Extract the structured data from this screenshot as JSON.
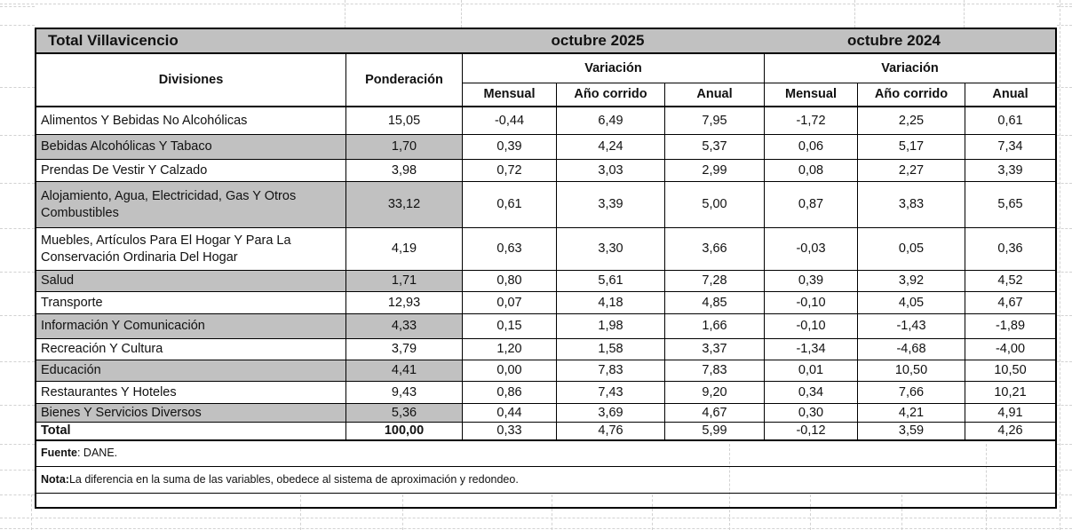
{
  "sheet": {
    "title": "Total Villavicencio",
    "groups": [
      {
        "label": "octubre 2025"
      },
      {
        "label": "octubre 2024"
      }
    ],
    "header": {
      "divisions": "Divisiones",
      "weight": "Ponderación",
      "variation": "Variación",
      "sub": [
        "Mensual",
        "Año corrido",
        "Anual"
      ]
    },
    "rows": [
      {
        "division": "Alimentos Y Bebidas No Alcohólicas",
        "weight": "15,05",
        "v2025": [
          "-0,44",
          "6,49",
          "7,95"
        ],
        "v2024": [
          "-1,72",
          "2,25",
          "0,61"
        ],
        "shaded": false,
        "bold": false
      },
      {
        "division": "Bebidas Alcohólicas Y Tabaco",
        "weight": "1,70",
        "v2025": [
          "0,39",
          "4,24",
          "5,37"
        ],
        "v2024": [
          "0,06",
          "5,17",
          "7,34"
        ],
        "shaded": true,
        "bold": false
      },
      {
        "division": "Prendas De Vestir Y Calzado",
        "weight": "3,98",
        "v2025": [
          "0,72",
          "3,03",
          "2,99"
        ],
        "v2024": [
          "0,08",
          "2,27",
          "3,39"
        ],
        "shaded": false,
        "bold": false
      },
      {
        "division": "Alojamiento, Agua, Electricidad, Gas Y Otros Combustibles",
        "weight": "33,12",
        "v2025": [
          "0,61",
          "3,39",
          "5,00"
        ],
        "v2024": [
          "0,87",
          "3,83",
          "5,65"
        ],
        "shaded": true,
        "bold": false
      },
      {
        "division": "Muebles, Artículos Para El Hogar Y Para La Conservación Ordinaria Del Hogar",
        "weight": "4,19",
        "v2025": [
          "0,63",
          "3,30",
          "3,66"
        ],
        "v2024": [
          "-0,03",
          "0,05",
          "0,36"
        ],
        "shaded": false,
        "bold": false
      },
      {
        "division": "Salud",
        "weight": "1,71",
        "v2025": [
          "0,80",
          "5,61",
          "7,28"
        ],
        "v2024": [
          "0,39",
          "3,92",
          "4,52"
        ],
        "shaded": true,
        "bold": false
      },
      {
        "division": "Transporte",
        "weight": "12,93",
        "v2025": [
          "0,07",
          "4,18",
          "4,85"
        ],
        "v2024": [
          "-0,10",
          "4,05",
          "4,67"
        ],
        "shaded": false,
        "bold": false
      },
      {
        "division": "Información Y Comunicación",
        "weight": "4,33",
        "v2025": [
          "0,15",
          "1,98",
          "1,66"
        ],
        "v2024": [
          "-0,10",
          "-1,43",
          "-1,89"
        ],
        "shaded": true,
        "bold": false
      },
      {
        "division": "Recreación Y Cultura",
        "weight": "3,79",
        "v2025": [
          "1,20",
          "1,58",
          "3,37"
        ],
        "v2024": [
          "-1,34",
          "-4,68",
          "-4,00"
        ],
        "shaded": false,
        "bold": false
      },
      {
        "division": "Educación",
        "weight": "4,41",
        "v2025": [
          "0,00",
          "7,83",
          "7,83"
        ],
        "v2024": [
          "0,01",
          "10,50",
          "10,50"
        ],
        "shaded": true,
        "bold": false
      },
      {
        "division": "Restaurantes Y Hoteles",
        "weight": "9,43",
        "v2025": [
          "0,86",
          "7,43",
          "9,20"
        ],
        "v2024": [
          "0,34",
          "7,66",
          "10,21"
        ],
        "shaded": false,
        "bold": false
      },
      {
        "division": "Bienes Y Servicios Diversos",
        "weight": "5,36",
        "v2025": [
          "0,44",
          "3,69",
          "4,67"
        ],
        "v2024": [
          "0,30",
          "4,21",
          "4,91"
        ],
        "shaded": true,
        "bold": false
      },
      {
        "division": "Total",
        "weight": "100,00",
        "v2025": [
          "0,33",
          "4,76",
          "5,99"
        ],
        "v2024": [
          "-0,12",
          "3,59",
          "4,26"
        ],
        "shaded": false,
        "bold": true
      }
    ],
    "footnotes": [
      {
        "label": "Fuente",
        "text": ": DANE."
      },
      {
        "label": "Nota:",
        "text": " La diferencia en la suma de las variables, obedece al sistema de aproximación y redondeo."
      }
    ],
    "colors": {
      "header_fill": "#c1c1c1",
      "stripe_fill": "#c1c1c1",
      "border": "#000000",
      "gridline": "#d2d2d2"
    }
  }
}
